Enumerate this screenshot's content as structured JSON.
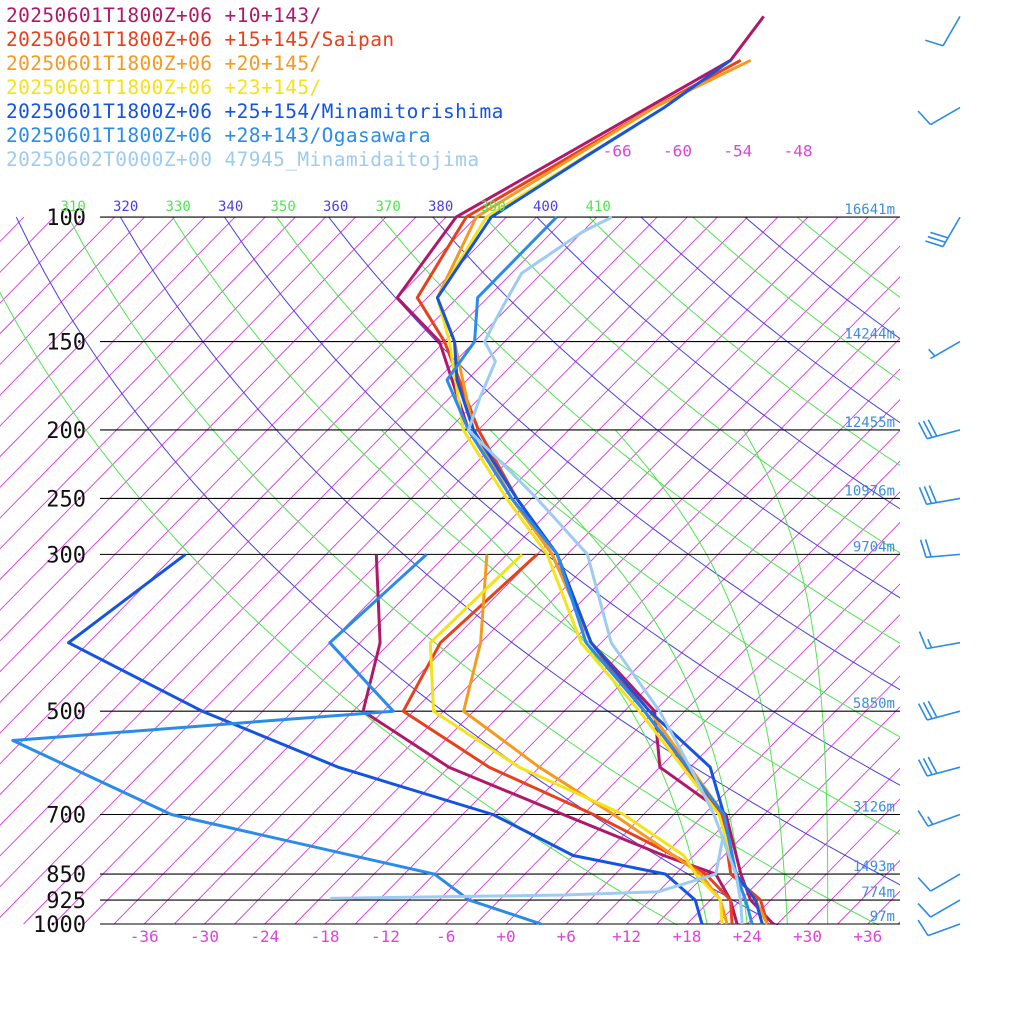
{
  "legend": [
    {
      "label": "20250601T1800Z+06 +10+143/",
      "color": "#b0186a"
    },
    {
      "label": "20250601T1800Z+06 +15+145/Saipan",
      "color": "#e8401c"
    },
    {
      "label": "20250601T1800Z+06 +20+145/",
      "color": "#f59a1f"
    },
    {
      "label": "20250601T1800Z+06 +23+145/",
      "color": "#f4e21a"
    },
    {
      "label": "20250601T1800Z+06 +25+154/Minamitorishima",
      "color": "#1454e0"
    },
    {
      "label": "20250601T1800Z+06 +28+143/Ogasawara",
      "color": "#2b8be8"
    },
    {
      "label": "20250602T0000Z+00 47945_Minamidaitojima",
      "color": "#9ecbf2"
    }
  ],
  "chart_data": {
    "type": "line",
    "title": "",
    "xlabel": "",
    "ylabel": "",
    "x_unit": "°C",
    "xlim": [
      -40,
      40
    ],
    "ylim": [
      1000,
      100
    ],
    "y_scale": "log",
    "pressure_labels": [
      "100",
      "150",
      "200",
      "250",
      "300",
      "500",
      "700",
      "850",
      "925",
      "1000"
    ],
    "pressure_values": [
      100,
      150,
      200,
      250,
      300,
      500,
      700,
      850,
      925,
      1000
    ],
    "height_labels": [
      "16641m",
      "14244m",
      "12455m",
      "10976m",
      "9704m",
      "5850m",
      "3126m",
      "1493m",
      "774m",
      "97m"
    ],
    "temp_ticks": [
      -36,
      -30,
      -24,
      -18,
      -12,
      -6,
      0,
      6,
      12,
      18,
      24,
      30,
      36
    ],
    "temp_tick_labels": [
      "-36",
      "-30",
      "-24",
      "-18",
      "-12",
      "-6",
      "+0",
      "+6",
      "+12",
      "+18",
      "+24",
      "+30",
      "+36"
    ],
    "isotherm_top_labels": [
      {
        "label": "-66",
        "t": -66
      },
      {
        "label": "-60",
        "t": -60
      },
      {
        "label": "-54",
        "t": -54
      },
      {
        "label": "-48",
        "t": -48
      }
    ],
    "theta_labels": [
      {
        "label": "310",
        "theta": 310
      },
      {
        "label": "320",
        "theta": 320
      },
      {
        "label": "330",
        "theta": 330
      },
      {
        "label": "340",
        "theta": 340
      },
      {
        "label": "350",
        "theta": 350
      },
      {
        "label": "360",
        "theta": 360
      },
      {
        "label": "370",
        "theta": 370
      },
      {
        "label": "380",
        "theta": 380
      },
      {
        "label": "390",
        "theta": 390
      },
      {
        "label": "400",
        "theta": 400
      },
      {
        "label": "410",
        "theta": 410
      }
    ],
    "grid": true,
    "legend_position": "top-left",
    "series": [
      {
        "name": "20250601T1800Z+06 +10+143/",
        "color": "#b0186a",
        "temperature": [
          [
            1000,
            26.6
          ],
          [
            925,
            22.0
          ],
          [
            850,
            18.5
          ],
          [
            700,
            11.2
          ],
          [
            600,
            0
          ],
          [
            500,
            -6.0
          ],
          [
            400,
            -19.0
          ],
          [
            300,
            -31.5
          ],
          [
            250,
            -41.0
          ],
          [
            200,
            -52.0
          ],
          [
            150,
            -63.5
          ],
          [
            130,
            -72.0
          ],
          [
            100,
            -74.0
          ],
          [
            60,
            -62.0
          ],
          [
            52,
            -63.0
          ]
        ],
        "dewpoint": [
          [
            300,
            -49.0
          ],
          [
            400,
            -40.0
          ],
          [
            500,
            -35.0
          ],
          [
            600,
            -21.0
          ],
          [
            700,
            -5.0
          ],
          [
            800,
            9.0
          ],
          [
            850,
            16.0
          ],
          [
            925,
            20.0
          ],
          [
            1000,
            23.0
          ]
        ]
      },
      {
        "name": "20250601T1800Z+06 +15+145/Saipan",
        "color": "#e8401c",
        "temperature": [
          [
            1000,
            26.0
          ],
          [
            925,
            23.0
          ],
          [
            850,
            17.5
          ],
          [
            700,
            10.8
          ],
          [
            500,
            -7.0
          ],
          [
            400,
            -19.0
          ],
          [
            300,
            -31.0
          ],
          [
            250,
            -40.5
          ],
          [
            200,
            -51.0
          ],
          [
            150,
            -63.0
          ],
          [
            130,
            -70.0
          ],
          [
            100,
            -73.0
          ],
          [
            70,
            -65.0
          ],
          [
            60,
            -61.0
          ]
        ],
        "dewpoint": [
          [
            300,
            -33.0
          ],
          [
            400,
            -34.0
          ],
          [
            500,
            -31.0
          ],
          [
            600,
            -17.0
          ],
          [
            700,
            -2.0
          ],
          [
            800,
            10.0
          ],
          [
            850,
            15.0
          ],
          [
            925,
            20.0
          ],
          [
            1000,
            22.5
          ]
        ]
      },
      {
        "name": "20250601T1800Z+06 +20+145/",
        "color": "#f59a1f",
        "temperature": [
          [
            1000,
            26.0
          ],
          [
            925,
            22.5
          ],
          [
            850,
            18.0
          ],
          [
            700,
            11.0
          ],
          [
            500,
            -6.5
          ],
          [
            400,
            -19.0
          ],
          [
            300,
            -31.5
          ],
          [
            250,
            -41.0
          ],
          [
            200,
            -51.5
          ],
          [
            150,
            -62.0
          ],
          [
            130,
            -68.0
          ],
          [
            100,
            -72.0
          ],
          [
            70,
            -65.0
          ],
          [
            60,
            -60.0
          ]
        ],
        "dewpoint": [
          [
            300,
            -38.0
          ],
          [
            400,
            -30.0
          ],
          [
            500,
            -25.0
          ],
          [
            600,
            -12.0
          ],
          [
            700,
            0
          ],
          [
            800,
            10.0
          ],
          [
            850,
            14.5
          ],
          [
            925,
            19.0
          ],
          [
            1000,
            22.0
          ]
        ]
      },
      {
        "name": "20250601T1800Z+06 +23+145/",
        "color": "#f4e21a",
        "temperature": [
          [
            1000,
            25.5
          ],
          [
            925,
            22.5
          ],
          [
            850,
            18.0
          ],
          [
            700,
            10.5
          ],
          [
            500,
            -7.5
          ],
          [
            400,
            -20.0
          ],
          [
            300,
            -32.0
          ],
          [
            250,
            -41.5
          ],
          [
            200,
            -52.5
          ],
          [
            150,
            -62.5
          ],
          [
            130,
            -68.0
          ],
          [
            100,
            -71.0
          ],
          [
            70,
            -64.0
          ]
        ],
        "dewpoint": [
          [
            300,
            -34.5
          ],
          [
            400,
            -35.0
          ],
          [
            500,
            -28.0
          ],
          [
            600,
            -14.0
          ],
          [
            700,
            1.0
          ],
          [
            800,
            11.0
          ],
          [
            850,
            14.0
          ],
          [
            925,
            19.0
          ],
          [
            1000,
            21.5
          ]
        ]
      },
      {
        "name": "20250601T1800Z+06 +25+154/Minamitorishima",
        "color": "#1454e0",
        "temperature": [
          [
            1000,
            25.5
          ],
          [
            925,
            22.5
          ],
          [
            850,
            18.0
          ],
          [
            700,
            11.0
          ],
          [
            600,
            5.0
          ],
          [
            500,
            -6.5
          ],
          [
            400,
            -19.0
          ],
          [
            300,
            -31.0
          ],
          [
            250,
            -40.5
          ],
          [
            200,
            -51.5
          ],
          [
            170,
            -58.0
          ],
          [
            150,
            -62.0
          ],
          [
            130,
            -68.0
          ],
          [
            100,
            -70.5
          ],
          [
            82,
            -67.0
          ],
          [
            70,
            -64.0
          ],
          [
            60,
            -62.0
          ]
        ],
        "dewpoint": [
          [
            300,
            -68.0
          ],
          [
            400,
            -71.0
          ],
          [
            500,
            -51.0
          ],
          [
            600,
            -32.0
          ],
          [
            700,
            -12.0
          ],
          [
            800,
            0
          ],
          [
            850,
            11.0
          ],
          [
            925,
            16.5
          ],
          [
            1000,
            19.5
          ]
        ]
      },
      {
        "name": "20250601T1800Z+06 +28+143/Ogasawara",
        "color": "#2b8be8",
        "temperature": [
          [
            1000,
            24.5
          ],
          [
            925,
            21.5
          ],
          [
            850,
            18.0
          ],
          [
            700,
            11.0
          ],
          [
            500,
            -7.0
          ],
          [
            400,
            -19.5
          ],
          [
            300,
            -31.0
          ],
          [
            250,
            -41.0
          ],
          [
            200,
            -52.0
          ],
          [
            170,
            -59.0
          ],
          [
            150,
            -60.0
          ],
          [
            130,
            -64.0
          ],
          [
            100,
            -64.0
          ]
        ],
        "dewpoint": [
          [
            300,
            -44.0
          ],
          [
            400,
            -45.0
          ],
          [
            500,
            -32.0
          ],
          [
            550,
            -67.0
          ],
          [
            700,
            -44.0
          ],
          [
            850,
            -12.0
          ],
          [
            925,
            -6.0
          ],
          [
            1000,
            3.5
          ]
        ]
      },
      {
        "name": "20250602T0000Z+00 47945_Minamidaitojima",
        "color": "#9ecbf2",
        "temperature": [
          [
            1000,
            23.5
          ],
          [
            925,
            21.0
          ],
          [
            850,
            18.0
          ],
          [
            700,
            10.0
          ],
          [
            600,
            3.0
          ],
          [
            500,
            -5.5
          ],
          [
            400,
            -17.0
          ],
          [
            300,
            -28.0
          ],
          [
            250,
            -38.5
          ],
          [
            230,
            -43.5
          ],
          [
            200,
            -52.0
          ],
          [
            180,
            -54.0
          ],
          [
            160,
            -56.0
          ],
          [
            150,
            -59.0
          ],
          [
            140,
            -60.0
          ],
          [
            130,
            -61.0
          ],
          [
            120,
            -62.0
          ],
          [
            105,
            -60.0
          ],
          [
            100,
            -58.5
          ]
        ],
        "dewpoint": [
          [
            920,
            -20.0
          ],
          [
            910,
            3.0
          ],
          [
            900,
            12.0
          ],
          [
            850,
            16.0
          ],
          [
            750,
            13.0
          ]
        ]
      }
    ],
    "wind_barbs": [
      {
        "pressure": 1000,
        "direction": 250,
        "speed": 10
      },
      {
        "pressure": 925,
        "direction": 240,
        "speed": 10
      },
      {
        "pressure": 850,
        "direction": 240,
        "speed": 10
      },
      {
        "pressure": 700,
        "direction": 250,
        "speed": 15
      },
      {
        "pressure": 600,
        "direction": 255,
        "speed": 30
      },
      {
        "pressure": 500,
        "direction": 255,
        "speed": 30
      },
      {
        "pressure": 400,
        "direction": 260,
        "speed": 15
      },
      {
        "pressure": 300,
        "direction": 265,
        "speed": 20
      },
      {
        "pressure": 250,
        "direction": 260,
        "speed": 30
      },
      {
        "pressure": 200,
        "direction": 255,
        "speed": 30
      },
      {
        "pressure": 150,
        "direction": 240,
        "speed": 5
      },
      {
        "pressure": 100,
        "direction": 210,
        "speed": 30
      },
      {
        "pressure": 70,
        "direction": 240,
        "speed": 10
      },
      {
        "pressure": 52,
        "direction": 210,
        "speed": 10
      }
    ]
  }
}
